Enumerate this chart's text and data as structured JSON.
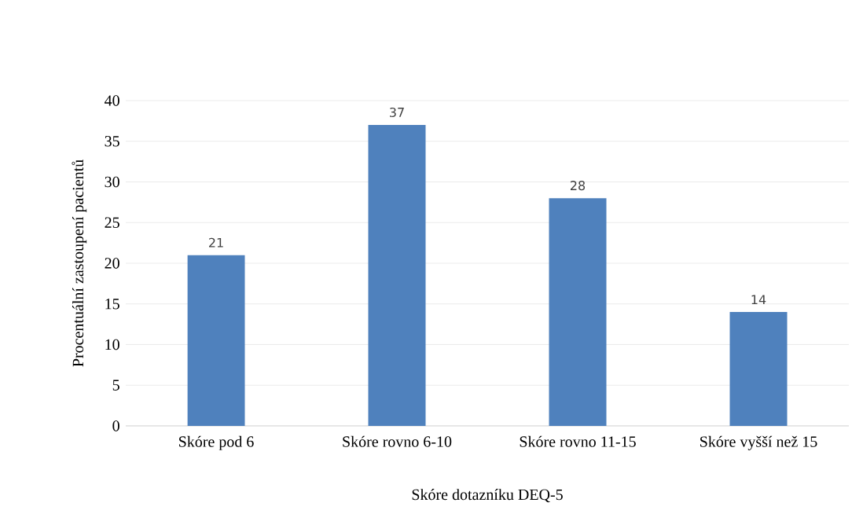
{
  "chart_data": {
    "type": "bar",
    "xlabel": "Skóre dotazníku DEQ-5",
    "ylabel": "Procentuální zastoupení pacientů",
    "categories": [
      "Skóre pod 6",
      "Skóre rovno 6-10",
      "Skóre rovno 11-15",
      "Skóre vyšší než 15"
    ],
    "values": [
      21,
      37,
      28,
      14
    ],
    "color": "#4f81bd",
    "ylim": [
      0,
      40
    ],
    "yticks": [
      0,
      5,
      10,
      15,
      20,
      25,
      30,
      35,
      40
    ],
    "grid": "y",
    "data_labels": true
  }
}
